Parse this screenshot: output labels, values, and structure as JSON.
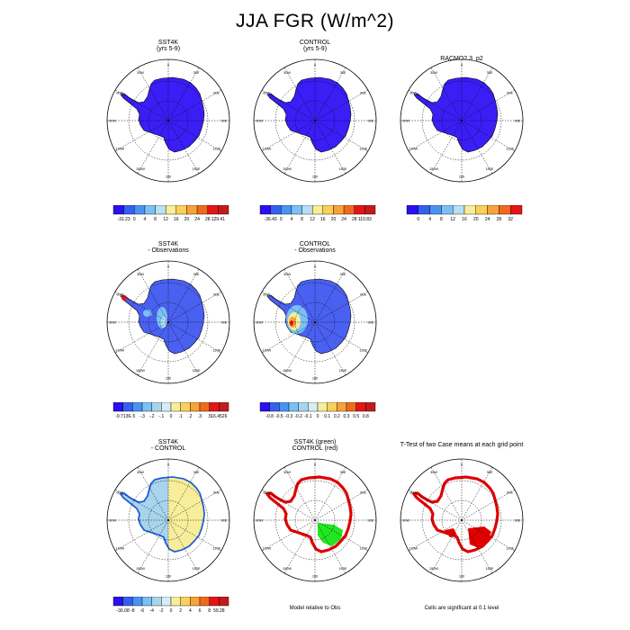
{
  "title": "JJA FGR (W/m^2)",
  "lon_labels": [
    "0",
    "30E",
    "60E",
    "90E",
    "120E",
    "150E",
    "180",
    "150W",
    "120W",
    "90W",
    "60W",
    "30W"
  ],
  "colors": {
    "blue_fill": "#3a1ef5",
    "outline": "#000000",
    "coast": "#1b5bd6",
    "red": "#e00000",
    "green": "#22e622",
    "yellow": "#f7ed9a",
    "lightblue": "#a8d4ec",
    "medblue": "#5aa0e0"
  },
  "panels": [
    {
      "id": "sst4k",
      "title_line1": "SST4K",
      "title_line2": "(yrs 5-9)",
      "style": "mean"
    },
    {
      "id": "control",
      "title_line1": "CONTROL",
      "title_line2": "(yrs 5-9)",
      "style": "mean"
    },
    {
      "id": "racmo",
      "title_line1": "RACMO2.3_p2",
      "title_line2": "",
      "style": "mean"
    },
    {
      "id": "sst4k_obs",
      "title_line1": "SST4K",
      "title_line2": "- Observations",
      "style": "diff1"
    },
    {
      "id": "control_obs",
      "title_line1": "CONTROL",
      "title_line2": "- Observations",
      "style": "diff2"
    },
    {
      "id": "sst4k_control",
      "title_line1": "SST4K",
      "title_line2": "- CONTROL",
      "style": "diff3"
    },
    {
      "id": "model_rel_obs",
      "title_line1": "SST4K (green)",
      "title_line2": "CONTROL (red)",
      "style": "sig"
    },
    {
      "id": "ttest",
      "title_line1": "T-Test of two Case means at each grid point",
      "title_line2": "",
      "style": "ttest"
    }
  ],
  "notes": {
    "model_rel_obs": "Model relative to Obs",
    "ttest": "Cells are significant at 0.1 level"
  },
  "chart_data": [
    {
      "type": "heatmap",
      "title": "SST4K (yrs 5-9)",
      "projection": "south polar stereographic",
      "colorbar": {
        "labels": [
          "-31.23",
          "0",
          "4",
          "8",
          "12",
          "16",
          "20",
          "24",
          "28",
          "129.41"
        ],
        "colors": [
          "#2a0ff0",
          "#3560ee",
          "#4a93f2",
          "#7ac0f5",
          "#b8dff3",
          "#f7ed9a",
          "#fad05a",
          "#f7a33a",
          "#f06a1e",
          "#e51515",
          "#c21b1b"
        ]
      }
    },
    {
      "type": "heatmap",
      "title": "CONTROL (yrs 5-9)",
      "projection": "south polar stereographic",
      "colorbar": {
        "labels": [
          "-36.43",
          "0",
          "4",
          "8",
          "12",
          "16",
          "20",
          "24",
          "28",
          "110.83"
        ],
        "colors": [
          "#2a0ff0",
          "#3560ee",
          "#4a93f2",
          "#7ac0f5",
          "#b8dff3",
          "#f7ed9a",
          "#fad05a",
          "#f7a33a",
          "#f06a1e",
          "#e51515",
          "#c21b1b"
        ]
      }
    },
    {
      "type": "heatmap",
      "title": "RACMO2.3_p2",
      "projection": "south polar stereographic",
      "colorbar": {
        "labels": [
          "0",
          "4",
          "8",
          "12",
          "16",
          "20",
          "24",
          "28",
          "32"
        ],
        "colors": [
          "#2a0ff0",
          "#3560ee",
          "#4a93f2",
          "#7ac0f5",
          "#b8dff3",
          "#f7ed9a",
          "#fad05a",
          "#f7a33a",
          "#f06a1e",
          "#e51515"
        ]
      }
    },
    {
      "type": "heatmap",
      "title": "SST4K - Observations",
      "colorbar": {
        "labels": [
          "-9.7136",
          "-.5",
          "-.3",
          "-.2",
          "-.1",
          "0",
          ".1",
          ".2",
          ".3",
          ".5",
          "16.4526"
        ],
        "colors": [
          "#2a0ff0",
          "#3560ee",
          "#4a93f2",
          "#7ac0f5",
          "#a8d4ec",
          "#d6ecf6",
          "#f7ed9a",
          "#fad05a",
          "#f7a33a",
          "#f06a1e",
          "#e51515",
          "#c21b1b"
        ]
      }
    },
    {
      "type": "heatmap",
      "title": "CONTROL - Observations",
      "colorbar": {
        "labels": [
          "-0.8",
          "-0.5",
          "-0.3",
          "-0.2",
          "-0.1",
          "0",
          "0.1",
          "0.2",
          "0.3",
          "0.5",
          "0.8"
        ],
        "colors": [
          "#2a0ff0",
          "#3560ee",
          "#4a93f2",
          "#7ac0f5",
          "#a8d4ec",
          "#d6ecf6",
          "#f7ed9a",
          "#fad05a",
          "#f7a33a",
          "#f06a1e",
          "#e51515",
          "#c21b1b"
        ]
      }
    },
    {
      "type": "heatmap",
      "title": "SST4K - CONTROL",
      "colorbar": {
        "labels": [
          "-36.08",
          "-8",
          "-6",
          "-4",
          "-2",
          "0",
          "2",
          "4",
          "6",
          "8",
          "59.28"
        ],
        "colors": [
          "#2a0ff0",
          "#3560ee",
          "#4a93f2",
          "#7ac0f5",
          "#a8d4ec",
          "#d6ecf6",
          "#f7ed9a",
          "#fad05a",
          "#f7a33a",
          "#f06a1e",
          "#e51515",
          "#c21b1b"
        ]
      }
    }
  ]
}
